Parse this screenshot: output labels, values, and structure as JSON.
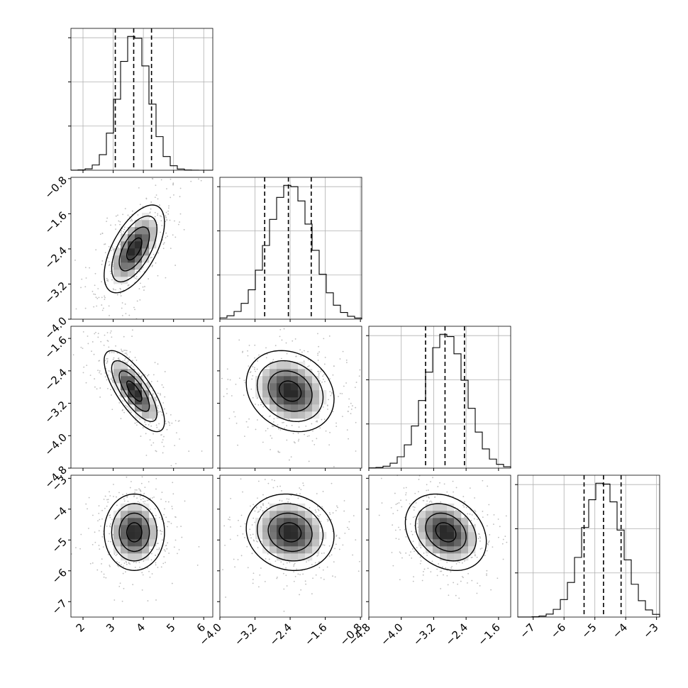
{
  "chart_data": {
    "type": "corner",
    "title": "",
    "parameters": [
      {
        "ticks": [
          2,
          3,
          4,
          5,
          6
        ],
        "tick_labels": [
          "2",
          "3",
          "4",
          "5",
          "6"
        ],
        "range": [
          1.6,
          6.3
        ],
        "mean": 3.7,
        "sd": 0.5,
        "quantiles": [
          3.07,
          3.68,
          4.27
        ]
      },
      {
        "ticks": [
          -4.0,
          -3.2,
          -2.4,
          -1.6,
          -0.8
        ],
        "tick_labels": [
          "−4.0",
          "−3.2",
          "−2.4",
          "−1.6",
          "−0.8"
        ],
        "range": [
          -4.0,
          -0.77
        ],
        "mean": -2.4,
        "sd": 0.5,
        "quantiles": [
          -2.98,
          -2.44,
          -1.92
        ]
      },
      {
        "ticks": [
          -4.8,
          -4.0,
          -3.2,
          -2.4,
          -1.6
        ],
        "tick_labels": [
          "−4.8",
          "−4.0",
          "−3.2",
          "−2.4",
          "−1.6"
        ],
        "range": [
          -4.8,
          -1.3
        ],
        "mean": -2.9,
        "sd": 0.5,
        "quantiles": [
          -3.4,
          -2.92,
          -2.44
        ]
      },
      {
        "ticks": [
          -7,
          -6,
          -5,
          -4,
          -3
        ],
        "tick_labels": [
          "−7",
          "−6",
          "−5",
          "−4",
          "−3"
        ],
        "range": [
          -7.5,
          -2.9
        ],
        "mean": -4.75,
        "sd": 0.62,
        "quantiles": [
          -5.35,
          -4.72,
          -4.15
        ]
      }
    ],
    "correlations": [
      {
        "row": 1,
        "col": 0,
        "rho": 0.6
      },
      {
        "row": 2,
        "col": 0,
        "rho": -0.75
      },
      {
        "row": 2,
        "col": 1,
        "rho": -0.2
      },
      {
        "row": 3,
        "col": 0,
        "rho": 0.0
      },
      {
        "row": 3,
        "col": 1,
        "rho": -0.1
      },
      {
        "row": 3,
        "col": 2,
        "rho": -0.25
      }
    ],
    "histogram_bins": 20,
    "density_bins": 20,
    "contour_levels": [
      0.5,
      1.0,
      1.5,
      2.0
    ],
    "grid": true,
    "xlabel": "",
    "ylabel": ""
  }
}
